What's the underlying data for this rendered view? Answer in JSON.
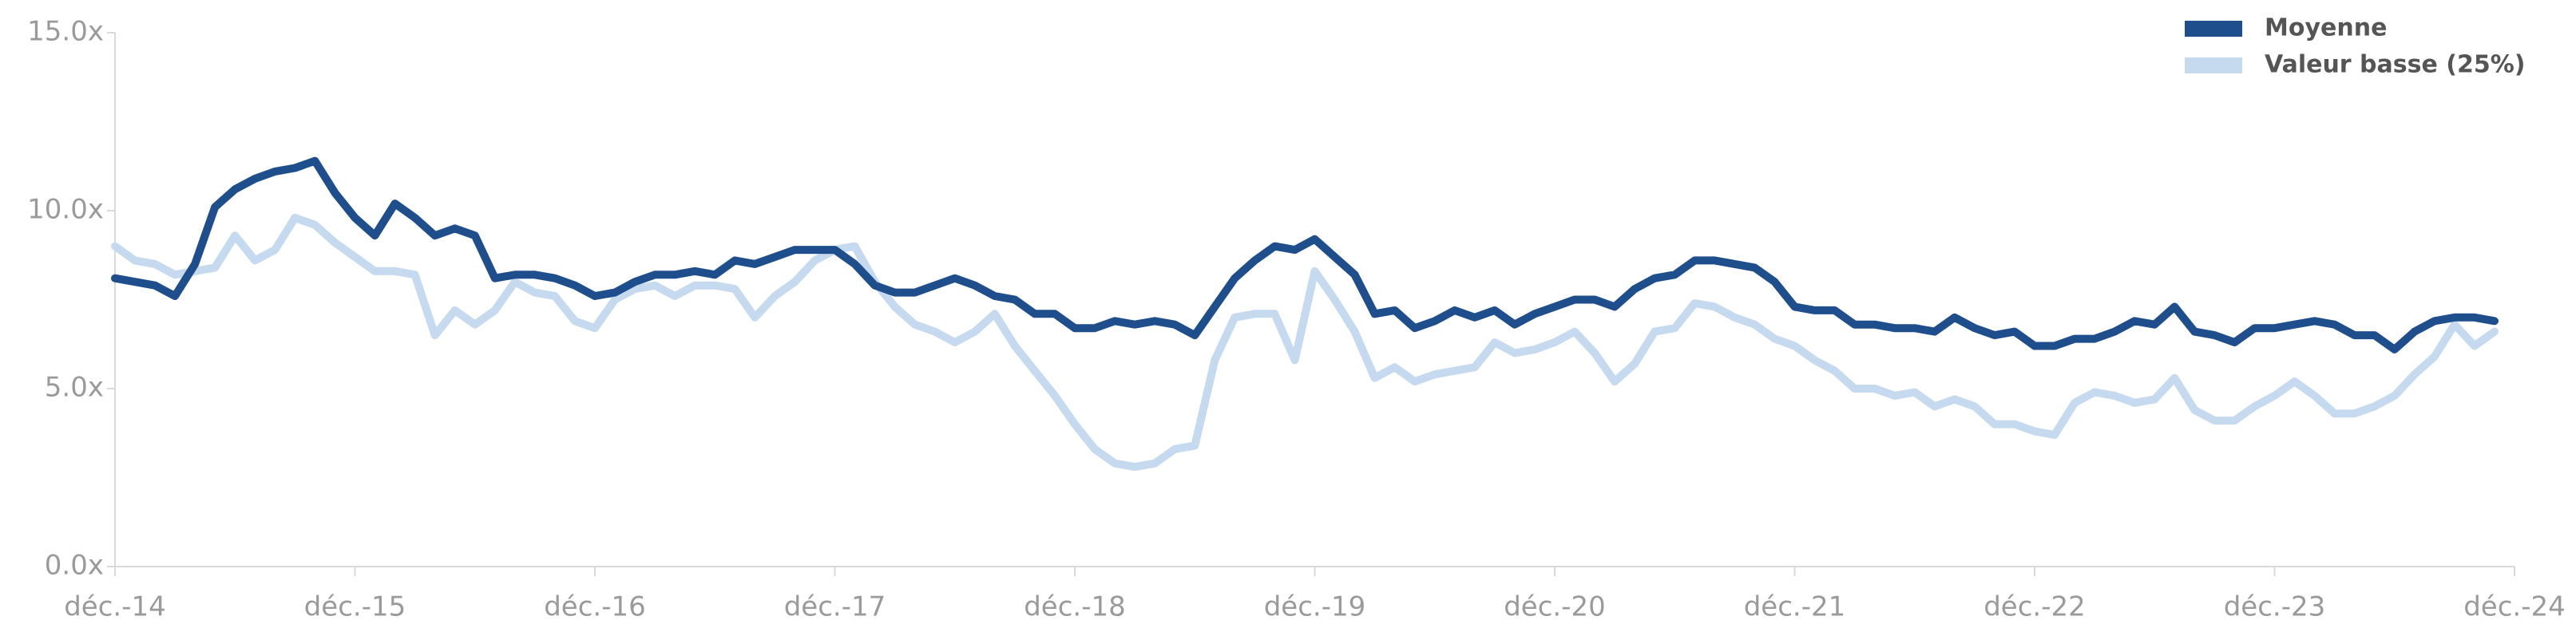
{
  "chart_data": {
    "type": "line",
    "categories": [
      "déc.-14",
      null,
      null,
      null,
      null,
      null,
      null,
      null,
      null,
      null,
      null,
      null,
      "déc.-15",
      null,
      null,
      null,
      null,
      null,
      null,
      null,
      null,
      null,
      null,
      null,
      "déc.-16",
      null,
      null,
      null,
      null,
      null,
      null,
      null,
      null,
      null,
      null,
      null,
      "déc.-17",
      null,
      null,
      null,
      null,
      null,
      null,
      null,
      null,
      null,
      null,
      null,
      "déc.-18",
      null,
      null,
      null,
      null,
      null,
      null,
      null,
      null,
      null,
      null,
      null,
      "déc.-19",
      null,
      null,
      null,
      null,
      null,
      null,
      null,
      null,
      null,
      null,
      null,
      "déc.-20",
      null,
      null,
      null,
      null,
      null,
      null,
      null,
      null,
      null,
      null,
      null,
      "déc.-21",
      null,
      null,
      null,
      null,
      null,
      null,
      null,
      null,
      null,
      null,
      null,
      "déc.-22",
      null,
      null,
      null,
      null,
      null,
      null,
      null,
      null,
      null,
      null,
      null,
      "déc.-23",
      null,
      null,
      null,
      null,
      null,
      null,
      null,
      null,
      null,
      null,
      null,
      "déc.-24"
    ],
    "series": [
      {
        "name": "Moyenne",
        "color": "#1f4e8c",
        "values": [
          8.1,
          8.0,
          7.9,
          7.6,
          8.5,
          10.1,
          10.6,
          10.9,
          11.1,
          11.2,
          11.4,
          10.5,
          9.8,
          9.3,
          10.2,
          9.8,
          9.3,
          9.5,
          9.3,
          8.1,
          8.2,
          8.2,
          8.1,
          7.9,
          7.6,
          7.7,
          8.0,
          8.2,
          8.2,
          8.3,
          8.2,
          8.6,
          8.5,
          8.7,
          8.9,
          8.9,
          8.9,
          8.5,
          7.9,
          7.7,
          7.7,
          7.9,
          8.1,
          7.9,
          7.6,
          7.5,
          7.1,
          7.1,
          6.7,
          6.7,
          6.9,
          6.8,
          6.9,
          6.8,
          6.5,
          7.3,
          8.1,
          8.6,
          9.0,
          8.9,
          9.2,
          8.7,
          8.2,
          7.1,
          7.2,
          6.7,
          6.9,
          7.2,
          7.0,
          7.2,
          6.8,
          7.1,
          7.3,
          7.5,
          7.5,
          7.3,
          7.8,
          8.1,
          8.2,
          8.6,
          8.6,
          8.5,
          8.4,
          8.0,
          7.3,
          7.2,
          7.2,
          6.8,
          6.8,
          6.7,
          6.7,
          6.6,
          7.0,
          6.7,
          6.5,
          6.6,
          6.2,
          6.2,
          6.4,
          6.4,
          6.6,
          6.9,
          6.8,
          7.3,
          6.6,
          6.5,
          6.3,
          6.7,
          6.7,
          6.8,
          6.9,
          6.8,
          6.5,
          6.5,
          6.1,
          6.6,
          6.9,
          7.0,
          7.0,
          6.9,
          null
        ]
      },
      {
        "name": "Valeur basse (25%)",
        "color": "#c5d9ef",
        "values": [
          9.0,
          8.6,
          8.5,
          8.2,
          8.3,
          8.4,
          9.3,
          8.6,
          8.9,
          9.8,
          9.6,
          9.1,
          8.7,
          8.3,
          8.3,
          8.2,
          6.5,
          7.2,
          6.8,
          7.2,
          8.0,
          7.7,
          7.6,
          6.9,
          6.7,
          7.5,
          7.8,
          7.9,
          7.6,
          7.9,
          7.9,
          7.8,
          7.0,
          7.6,
          8.0,
          8.6,
          8.9,
          9.0,
          8.0,
          7.3,
          6.8,
          6.6,
          6.3,
          6.6,
          7.1,
          6.2,
          5.5,
          4.8,
          4.0,
          3.3,
          2.9,
          2.8,
          2.9,
          3.3,
          3.4,
          5.8,
          7.0,
          7.1,
          7.1,
          5.8,
          8.3,
          7.5,
          6.6,
          5.3,
          5.6,
          5.2,
          5.4,
          5.5,
          5.6,
          6.3,
          6.0,
          6.1,
          6.3,
          6.6,
          6.0,
          5.2,
          5.7,
          6.6,
          6.7,
          7.4,
          7.3,
          7.0,
          6.8,
          6.4,
          6.2,
          5.8,
          5.5,
          5.0,
          5.0,
          4.8,
          4.9,
          4.5,
          4.7,
          4.5,
          4.0,
          4.0,
          3.8,
          3.7,
          4.6,
          4.9,
          4.8,
          4.6,
          4.7,
          5.3,
          4.4,
          4.1,
          4.1,
          4.5,
          4.8,
          5.2,
          4.8,
          4.3,
          4.3,
          4.5,
          4.8,
          5.4,
          5.9,
          6.8,
          6.2,
          6.6,
          null
        ]
      }
    ],
    "ylim": [
      0,
      15
    ],
    "yticks": [
      {
        "value": 0,
        "label": "0.0x"
      },
      {
        "value": 5,
        "label": "5.0x"
      },
      {
        "value": 10,
        "label": "10.0x"
      },
      {
        "value": 15,
        "label": "15.0x"
      }
    ],
    "legend": "upper right"
  }
}
